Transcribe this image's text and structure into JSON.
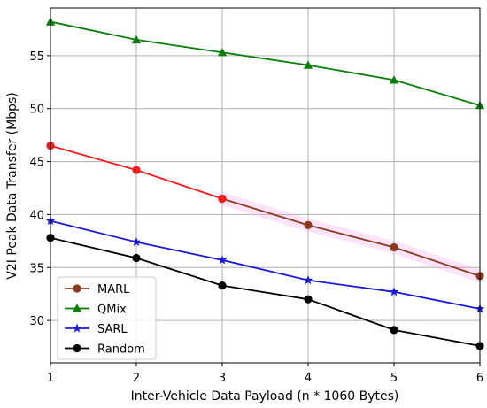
{
  "chart_data": {
    "type": "line",
    "title": "",
    "xlabel": "Inter-Vehicle Data Payload (n * 1060 Bytes)",
    "ylabel": "V2I Peak Data Transfer (Mbps)",
    "x": [
      1,
      2,
      3,
      4,
      5,
      6
    ],
    "xlim": [
      1,
      6
    ],
    "ylim": [
      26,
      59.5
    ],
    "xticks": [
      1,
      2,
      3,
      4,
      5,
      6
    ],
    "yticks": [
      30,
      35,
      40,
      45,
      50,
      55
    ],
    "grid": true,
    "legend_position": "lower-left",
    "series": [
      {
        "name": "MARL",
        "values": [
          46.5,
          44.2,
          41.5,
          39.0,
          36.9,
          34.2
        ],
        "color": "#ee1c1c",
        "color_late": "#8b3a1e",
        "marker": "circle"
      },
      {
        "name": "QMix",
        "values": [
          58.2,
          56.5,
          55.3,
          54.1,
          52.7,
          50.3
        ],
        "color": "#0a7d0a",
        "marker": "triangle"
      },
      {
        "name": "SARL",
        "values": [
          39.4,
          37.4,
          35.7,
          33.8,
          32.7,
          31.1
        ],
        "color": "#1a1ad6",
        "marker": "star"
      },
      {
        "name": "Random",
        "values": [
          37.8,
          35.9,
          33.3,
          32.0,
          29.1,
          27.6
        ],
        "color": "#000000",
        "marker": "circle"
      }
    ]
  }
}
